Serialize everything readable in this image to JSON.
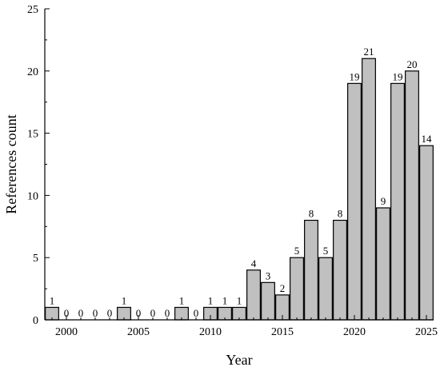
{
  "chart_data": {
    "type": "bar",
    "xlabel": "Year",
    "ylabel": "References count",
    "categories": [
      1999,
      2000,
      2001,
      2002,
      2003,
      2004,
      2005,
      2006,
      2007,
      2008,
      2009,
      2010,
      2011,
      2012,
      2013,
      2014,
      2015,
      2016,
      2017,
      2018,
      2019,
      2020,
      2021,
      2022,
      2023,
      2024,
      2025
    ],
    "values": [
      1,
      0,
      0,
      0,
      0,
      1,
      0,
      0,
      0,
      1,
      0,
      1,
      1,
      1,
      4,
      3,
      2,
      5,
      8,
      5,
      8,
      19,
      21,
      9,
      19,
      20,
      14
    ],
    "data_labels": [
      "1",
      "0",
      "0",
      "0",
      "0",
      "1",
      "0",
      "0",
      "0",
      "1",
      "0",
      "1",
      "1",
      "1",
      "4",
      "3",
      "2",
      "5",
      "8",
      "5",
      "8",
      "19",
      "21",
      "9",
      "19",
      "20",
      "14"
    ],
    "xlim": [
      1998.5,
      2025.5
    ],
    "ylim": [
      0,
      25
    ],
    "x_ticks": [
      2000,
      2005,
      2010,
      2015,
      2020,
      2025
    ],
    "x_tick_labels": [
      "2000",
      "2005",
      "2010",
      "2015",
      "2020",
      "2025"
    ],
    "y_ticks": [
      0,
      5,
      10,
      15,
      20,
      25
    ],
    "y_tick_labels": [
      "0",
      "5",
      "10",
      "15",
      "20",
      "25"
    ],
    "bar_color": "#c0c0c0",
    "edge_color": "#000000",
    "grid": false,
    "legend": "none"
  }
}
